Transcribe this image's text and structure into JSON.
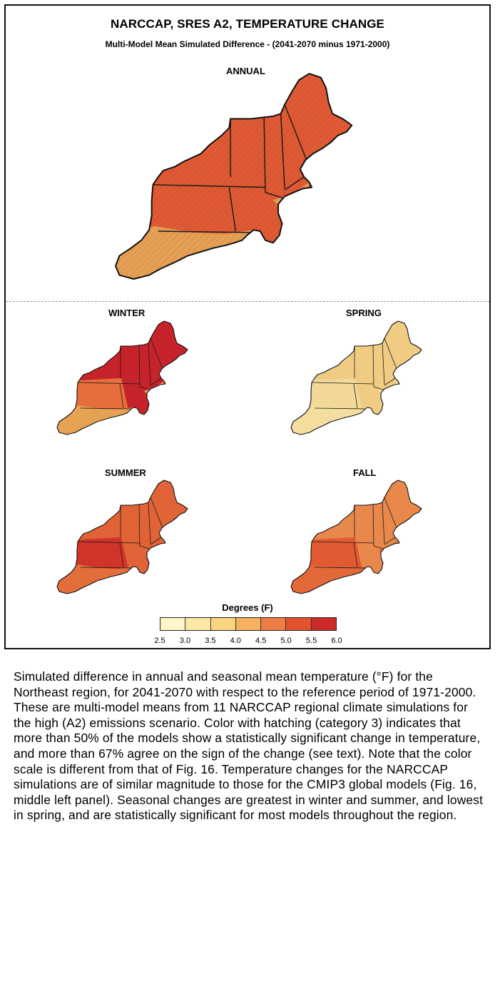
{
  "figure": {
    "title": "NARCCAP, SRES A2, TEMPERATURE CHANGE",
    "subtitle": "Multi-Model Mean Simulated Difference - (2041-2070 minus 1971-2000)",
    "panels": [
      {
        "id": "annual",
        "label": "ANNUAL",
        "north_fill": "#df5a34",
        "south_fill": "#e5a055",
        "west_fill": "#df5a34"
      },
      {
        "id": "winter",
        "label": "WINTER",
        "north_fill": "#c8232b",
        "south_fill": "#e8a555",
        "west_fill": "#ea6f3e"
      },
      {
        "id": "spring",
        "label": "SPRING",
        "north_fill": "#f3cf85",
        "south_fill": "#f7e2a2",
        "west_fill": "#f5dc9b"
      },
      {
        "id": "summer",
        "label": "SUMMER",
        "north_fill": "#e36437",
        "south_fill": "#e4703c",
        "west_fill": "#d2342a"
      },
      {
        "id": "fall",
        "label": "FALL",
        "north_fill": "#eb8a4c",
        "south_fill": "#e56a3a",
        "west_fill": "#e35b33"
      }
    ],
    "legend": {
      "title": "Degrees (F)",
      "ticks": [
        "2.5",
        "3.0",
        "3.5",
        "4.0",
        "4.5",
        "5.0",
        "5.5",
        "6.0"
      ],
      "colors": [
        "#fff6c8",
        "#fde7a4",
        "#fbd480",
        "#f6b25c",
        "#ef7c43",
        "#e3512f",
        "#cc2a2a",
        "#a51d27"
      ]
    }
  },
  "caption": "Simulated difference in annual and seasonal mean temperature (°F) for the Northeast region, for 2041-2070 with respect to the reference period of 1971-2000. These are multi-model means from 11 NARCCAP regional climate simulations for the high (A2) emissions scenario. Color with hatching (category 3) indicates that more than 50% of the models show a statistically significant change in temperature, and more than 67% agree on the sign of the change (see text). Note that the color scale is different from that of Fig. 16. Temperature changes for the NARCCAP simulations are of similar magnitude to those for the CMIP3 global models (Fig. 16, middle left panel). Seasonal changes are greatest in winter and summer, and lowest in spring, and are statistically significant for most models throughout the region."
}
